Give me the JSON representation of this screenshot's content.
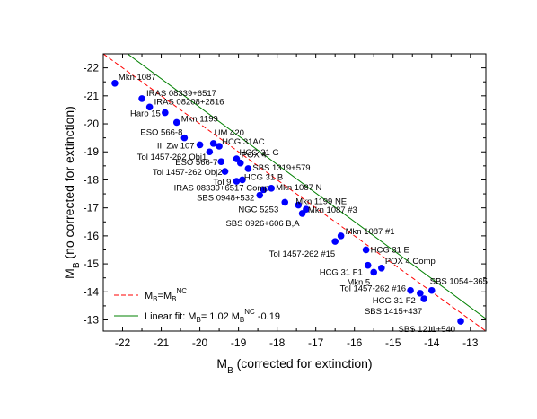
{
  "chart_data": {
    "type": "scatter",
    "xlabel": {
      "main": "M",
      "sub": "B",
      "rest": " (corrected for extinction)"
    },
    "ylabel": {
      "main": "M",
      "sub": "B",
      "rest": " (no corrected for extinction)"
    },
    "xlim": [
      -22.5,
      -12.6
    ],
    "ylim": [
      -12.6,
      -22.5
    ],
    "x_ticks": [
      -22,
      -21,
      -20,
      -19,
      -18,
      -17,
      -16,
      -15,
      -14,
      -13
    ],
    "y_ticks": [
      -13,
      -14,
      -15,
      -16,
      -17,
      -18,
      -19,
      -20,
      -21,
      -22
    ],
    "grid": false,
    "legend_position": "bottom-left",
    "legend": [
      {
        "kind": "dashed-line",
        "color": "#ff0000",
        "label_main": "M",
        "label_sub": "B",
        "label_mid": "=M",
        "label_sub2": "B",
        "label_sup2": "NC",
        "label_tail": ""
      },
      {
        "kind": "solid-line",
        "color": "#008000",
        "label_main": "Linear fit: M",
        "label_sub": "B",
        "label_mid": "= 1.02 M",
        "label_sub2": "B",
        "label_sup2": "NC",
        "label_tail": " -0.19"
      }
    ],
    "series": [
      {
        "color": "#0000ff",
        "points": [
          {
            "label": "Mkn 1087",
            "x": -22.2,
            "y": -21.45
          },
          {
            "label": "IRAS 08339+6517",
            "x": -21.5,
            "y": -20.9
          },
          {
            "label": "IRAS 08208+2816",
            "x": -21.3,
            "y": -20.6
          },
          {
            "label": "Haro 15",
            "x": -20.9,
            "y": -20.4
          },
          {
            "label": "Mkn 1199",
            "x": -20.6,
            "y": -20.05
          },
          {
            "label": "ESO 566-8",
            "x": -20.4,
            "y": -19.5
          },
          {
            "label": "III Zw 107",
            "x": -20.0,
            "y": -19.25
          },
          {
            "label": "UM 420",
            "x": -19.65,
            "y": -19.3
          },
          {
            "label": "HCG 31AC",
            "x": -19.5,
            "y": -19.2
          },
          {
            "label": "Tol 1457-262 Obj1",
            "x": -19.75,
            "y": -19.0
          },
          {
            "label": "HCG 31 G",
            "x": -19.05,
            "y": -18.75
          },
          {
            "label": "ESO 566-7",
            "x": -19.45,
            "y": -18.65
          },
          {
            "label": "POX 4",
            "x": -18.95,
            "y": -18.6
          },
          {
            "label": "SBS 1319+579",
            "x": -18.75,
            "y": -18.4
          },
          {
            "label": "Tol 1457-262 Obj2",
            "x": -19.35,
            "y": -18.3
          },
          {
            "label": "Tol 9",
            "x": -19.05,
            "y": -17.95
          },
          {
            "label": "HCG 31 B",
            "x": -18.9,
            "y": -18.0
          },
          {
            "label": "IRAS 08339+6517 Comp",
            "x": -18.35,
            "y": -17.65
          },
          {
            "label": "Mkn 1087 N",
            "x": -18.15,
            "y": -17.7
          },
          {
            "label": "SBS 0948+532",
            "x": -18.45,
            "y": -17.45
          },
          {
            "label": "NGC 5253",
            "x": -17.8,
            "y": -17.2
          },
          {
            "label": "Mkn 1199 NE",
            "x": -17.45,
            "y": -17.1
          },
          {
            "label": "Mkn 1087 #3",
            "x": -17.25,
            "y": -16.95
          },
          {
            "label": "SBS 0926+606 B,A",
            "x": -17.35,
            "y": -16.8
          },
          {
            "label": "Mkn 1087 #1",
            "x": -16.35,
            "y": -16.0
          },
          {
            "label": "Tol 1457-262 #15",
            "x": -16.5,
            "y": -15.8
          },
          {
            "label": "HCG 31 E",
            "x": -15.7,
            "y": -15.5
          },
          {
            "label": "HCG 31 F1",
            "x": -15.65,
            "y": -14.95
          },
          {
            "label": "POX 4 Comp",
            "x": -15.3,
            "y": -14.85
          },
          {
            "label": "Mkn 5",
            "x": -15.5,
            "y": -14.7
          },
          {
            "label": "Tol 1457-262 #16",
            "x": -14.55,
            "y": -14.05
          },
          {
            "label": "SBS 1054+365",
            "x": -14.0,
            "y": -14.05
          },
          {
            "label": "HCG 31 F2",
            "x": -14.3,
            "y": -13.95
          },
          {
            "label": "SBS 1415+437",
            "x": -14.2,
            "y": -13.75
          },
          {
            "label": "SBS 1211+540",
            "x": -13.25,
            "y": -12.95
          }
        ]
      }
    ],
    "lines": [
      {
        "name": "identity",
        "color": "#ff0000",
        "style": "dashed",
        "slope": 1.0,
        "intercept": 0.0
      },
      {
        "name": "fit",
        "color": "#008000",
        "style": "solid",
        "slope": 1.02,
        "intercept": -0.19
      }
    ]
  }
}
